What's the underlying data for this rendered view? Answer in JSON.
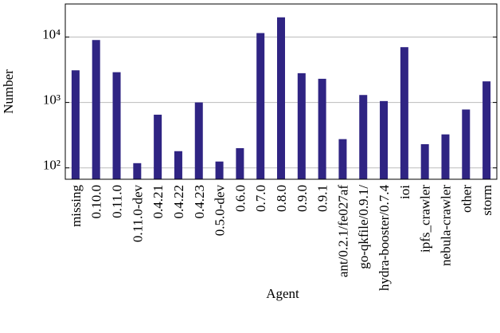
{
  "chart_data": {
    "type": "bar",
    "x_label": "Agent",
    "y_label": "Number",
    "categories": [
      "missing",
      "0.10.0",
      "0.11.0",
      "0.11.0-dev",
      "0.4.21",
      "0.4.22",
      "0.4.23",
      "0.5.0-dev",
      "0.6.0",
      "0.7.0",
      "0.8.0",
      "0.9.0",
      "0.9.1",
      "ant/0.2.1/fe027af",
      "go-qkfile/0.9.1/",
      "hydra-booster/0.7.4",
      "ioi",
      "ipfs_crawler",
      "nebula-crawler",
      "other",
      "storm"
    ],
    "values": [
      3100,
      9000,
      2900,
      118,
      650,
      180,
      1000,
      125,
      200,
      11500,
      20000,
      2800,
      2300,
      275,
      1300,
      1050,
      7000,
      230,
      325,
      780,
      2100
    ],
    "color": "#2f2483",
    "log_scale": true,
    "ylim": [
      67,
      32000
    ],
    "yticks": [
      {
        "value": 100,
        "label": "10²"
      },
      {
        "value": 1000,
        "label": "10³"
      },
      {
        "value": 10000,
        "label": "10⁴"
      }
    ],
    "grid": true
  }
}
